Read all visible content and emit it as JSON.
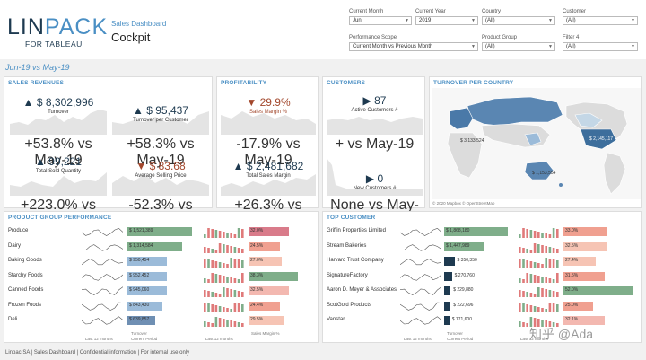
{
  "brand": {
    "name_bold": "LIN",
    "name_thin": "PACK",
    "sub": "FOR TABLEAU"
  },
  "app": {
    "subtitle": "Sales Dashboard",
    "title": "Cockpit"
  },
  "filters": [
    {
      "label": "Current Month",
      "value": "Jun"
    },
    {
      "label": "Current Year",
      "value": "2019"
    },
    {
      "label": "Country",
      "value": "(All)"
    },
    {
      "label": "Customer",
      "value": "(All)"
    },
    {
      "label": "Performance Scope",
      "value": "Current Month vs Previous Month"
    },
    {
      "label": "Product Group",
      "value": "(All)"
    },
    {
      "label": "Filter 4",
      "value": "(All)"
    }
  ],
  "period": "Jun-19 vs May-19",
  "sales": {
    "title": "SALES REVENUES",
    "kpis": [
      {
        "value": "$ 8,302,996",
        "label": "Turnover",
        "compare": "+53.8% vs May-19",
        "dir": "up"
      },
      {
        "value": "$ 95,437",
        "label": "Turnover per Customer",
        "compare": "+58.3% vs May-19",
        "dir": "up"
      },
      {
        "value": "99,221",
        "label": "Total Sold Quantity",
        "compare": "+223.0% vs May-19",
        "dir": "up"
      },
      {
        "value": "$ 83.68",
        "label": "Average Selling Price",
        "compare": "-52.3% vs May-19",
        "dir": "down"
      }
    ]
  },
  "profitability": {
    "title": "PROFITABILITY",
    "kpis": [
      {
        "value": "29.9%",
        "label": "Sales Margin %",
        "compare": "-17.9% vs May-19",
        "dir": "down"
      },
      {
        "value": "$ 2,481,682",
        "label": "Total Sales Margin",
        "compare": "+26.3% vs May-19",
        "dir": "up"
      }
    ]
  },
  "customers": {
    "title": "CUSTOMERS",
    "kpis": [
      {
        "value": "87",
        "label": "Active Customers #",
        "compare": "+ vs May-19",
        "dir": "flat"
      },
      {
        "value": "0",
        "label": "New Customers #",
        "compare": "None vs May-19",
        "dir": "flat"
      }
    ]
  },
  "map": {
    "title": "TURNOVER PER COUNTRY",
    "labels": [
      "$ 3,133,524",
      "$ 1,153,554",
      "$ 2,145,117"
    ],
    "credit": "© 2020 Mapbox © OpenStreetMap"
  },
  "pgp": {
    "title": "PRODUCT GROUP PERFORMANCE",
    "rows": [
      {
        "name": "Produce",
        "turnover": "$ 1,521,389",
        "t": 0.98,
        "margin": "32.0%",
        "m": 0.62,
        "mc": "#d97b8a"
      },
      {
        "name": "Dairy",
        "turnover": "$ 1,314,584",
        "t": 0.84,
        "margin": "24.5%",
        "m": 0.48,
        "mc": "#f0a090"
      },
      {
        "name": "Baking Goods",
        "turnover": "$ 950,454",
        "t": 0.6,
        "margin": "27.0%",
        "m": 0.52,
        "mc": "#f6c4b4"
      },
      {
        "name": "Starchy Foods",
        "turnover": "$ 952,452",
        "t": 0.6,
        "margin": "38.3%",
        "m": 0.76,
        "mc": "#7fae8a"
      },
      {
        "name": "Canned Foods",
        "turnover": "$ 945,060",
        "t": 0.6,
        "margin": "32.5%",
        "m": 0.62,
        "mc": "#f3b8b0"
      },
      {
        "name": "Frozen Foods",
        "turnover": "$ 843,430",
        "t": 0.54,
        "margin": "24.4%",
        "m": 0.48,
        "mc": "#f0a090"
      },
      {
        "name": "Deli",
        "turnover": "$ 639,857",
        "t": 0.42,
        "margin": "29.5%",
        "m": 0.56,
        "mc": "#f6c4b4"
      }
    ],
    "footer_trend": "Last 12 months",
    "footer_turnover_1": "Turnover",
    "footer_turnover_2": "Current Period",
    "footer_trend2": "Last 12 months",
    "footer_margin": "Sales Margin %"
  },
  "top": {
    "title": "TOP CUSTOMER",
    "rows": [
      {
        "name": "Griffin Properties Limited",
        "turnover": "$ 1,868,180",
        "t": 0.98,
        "margin": "33.0%",
        "m": 0.6,
        "mc": "#f0a090"
      },
      {
        "name": "Stream Bakeries",
        "turnover": "$ 1,447,989",
        "t": 0.62,
        "margin": "32.5%",
        "m": 0.58,
        "mc": "#f6c4b4"
      },
      {
        "name": "Harvard Trust Company",
        "turnover": "$ 350,350",
        "t": 0.16,
        "margin": "27.4%",
        "m": 0.44,
        "mc": "#f6c4b4"
      },
      {
        "name": "SignatureFactory",
        "turnover": "$ 270,760",
        "t": 0.12,
        "margin": "31.5%",
        "m": 0.56,
        "mc": "#f0a090"
      },
      {
        "name": "Aaron D. Meyer & Associates",
        "turnover": "$ 229,880",
        "t": 0.1,
        "margin": "52.0%",
        "m": 0.95,
        "mc": "#7fae8a"
      },
      {
        "name": "ScotGold Products",
        "turnover": "$ 222,696",
        "t": 0.1,
        "margin": "25.0%",
        "m": 0.4,
        "mc": "#f0a090"
      },
      {
        "name": "Vanstar",
        "turnover": "$ 171,600",
        "t": 0.08,
        "margin": "32.1%",
        "m": 0.56,
        "mc": "#f3b8b0"
      }
    ],
    "footer_trend": "Last 12 months",
    "footer_turnover_1": "Turnover",
    "footer_turnover_2": "Current Period",
    "footer_trend2": "Last 12 months"
  },
  "footer": "Linpac SA | Sales Dashboard | Confidential information | For internal use only",
  "watermark": "知乎 @Ada",
  "colors": {
    "accent": "#4a8fc4",
    "navy": "#1e3a50",
    "negative": "#a2472c",
    "bar_green": "#7fae8a",
    "bar_blue": "#9bbbd9",
    "spark_fill": "#e4e4e4"
  }
}
